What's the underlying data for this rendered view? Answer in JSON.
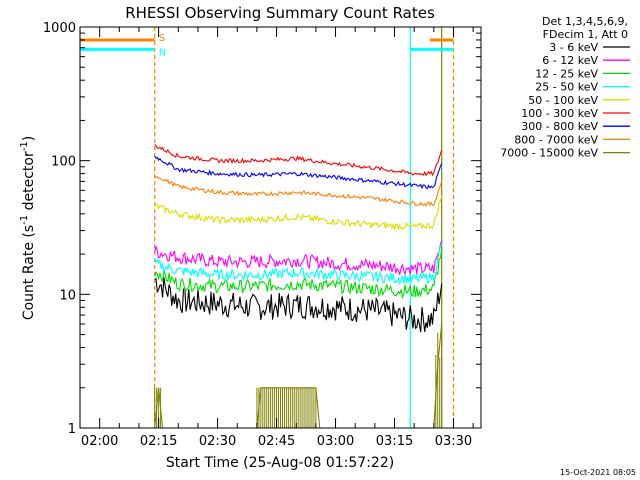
{
  "chart_data": {
    "type": "line",
    "title": "RHESSI Observing Summary Count Rates",
    "xlabel": "Start Time (25-Aug-08 01:57:22)",
    "ylabel_main": "Count Rate (s",
    "ylabel_sup1": "-1",
    "ylabel_mid": " detector",
    "ylabel_sup2": "-1",
    "ylabel_end": ")",
    "y_scale": "log",
    "ylim": [
      1,
      1000
    ],
    "xlim": [
      "01:55",
      "03:37"
    ],
    "x_ticks": [
      "02:00",
      "02:15",
      "02:30",
      "02:45",
      "03:00",
      "03:15",
      "03:30"
    ],
    "x_tick_minutes": [
      120,
      135,
      150,
      165,
      180,
      195,
      210
    ],
    "y_ticks": [
      "1",
      "10",
      "100",
      "1000"
    ],
    "y_tick_values": [
      1,
      10,
      100,
      1000
    ],
    "legend_position": "top-right",
    "legend_header": [
      "Det 1,3,4,5,6,9,",
      "FDecim 1, Att 0"
    ],
    "series": [
      {
        "name": "3 - 6 keV",
        "color": "#000000",
        "x": [
          134,
          140,
          150,
          160,
          170,
          180,
          190,
          200,
          205,
          207
        ],
        "values": [
          13,
          9,
          8.5,
          8,
          8.3,
          8,
          7.5,
          6.5,
          6.5,
          12
        ]
      },
      {
        "name": "6 - 12 keV",
        "color": "#ff00ff",
        "x": [
          134,
          140,
          150,
          160,
          170,
          180,
          190,
          200,
          205,
          207
        ],
        "values": [
          21,
          19,
          17.5,
          17.5,
          18,
          17,
          16.5,
          15.5,
          15.5,
          25
        ]
      },
      {
        "name": "12 - 25 keV",
        "color": "#00dd00",
        "x": [
          134,
          140,
          150,
          160,
          170,
          180,
          190,
          200,
          205,
          207
        ],
        "values": [
          15,
          12,
          11.5,
          11.5,
          12,
          11.5,
          11,
          10.5,
          11,
          22
        ]
      },
      {
        "name": "25 - 50 keV",
        "color": "#00ffff",
        "x": [
          134,
          140,
          150,
          160,
          170,
          180,
          190,
          200,
          205,
          207
        ],
        "values": [
          17,
          15,
          14,
          14,
          14.5,
          14,
          13.5,
          13,
          13.5,
          24
        ]
      },
      {
        "name": "50 - 100 keV",
        "color": "#dddd00",
        "x": [
          134,
          140,
          150,
          160,
          170,
          180,
          190,
          200,
          205,
          207
        ],
        "values": [
          46,
          40,
          36,
          36,
          38,
          35,
          33,
          32,
          33,
          55
        ]
      },
      {
        "name": "100 - 300 keV",
        "color": "#ff0000",
        "x": [
          134,
          140,
          150,
          160,
          170,
          180,
          190,
          200,
          205,
          207
        ],
        "values": [
          130,
          108,
          100,
          100,
          104,
          95,
          88,
          80,
          80,
          120
        ]
      },
      {
        "name": "300 - 800 keV",
        "color": "#0000ff",
        "x": [
          134,
          140,
          150,
          160,
          170,
          180,
          190,
          200,
          205,
          207
        ],
        "values": [
          108,
          86,
          80,
          78,
          80,
          75,
          70,
          65,
          63,
          95
        ]
      },
      {
        "name": "800 - 7000 keV",
        "color": "#ff8000",
        "x": [
          134,
          140,
          150,
          160,
          170,
          180,
          190,
          200,
          205,
          207
        ],
        "values": [
          78,
          64,
          58,
          56,
          58,
          55,
          52,
          48,
          47,
          70
        ]
      },
      {
        "name": "7000 - 15000 keV",
        "color": "#808000",
        "x": [
          134,
          135,
          136,
          160,
          161,
          175,
          176,
          205,
          206,
          207
        ],
        "values": [
          1,
          2,
          1,
          1,
          2,
          2,
          1,
          1,
          3,
          6
        ]
      }
    ],
    "flags": [
      {
        "label": "S",
        "color": "#ff8000",
        "value": 800,
        "segments": [
          [
            115,
            134
          ],
          [
            204,
            210
          ]
        ]
      },
      {
        "label": "N",
        "color": "#00ffff",
        "value": 680,
        "segments": [
          [
            115,
            134
          ],
          [
            199,
            210
          ]
        ]
      }
    ],
    "vertical_markers": [
      {
        "x": 115,
        "color": "#00ffff",
        "style": "solid"
      },
      {
        "x": 134,
        "color": "#ff8000",
        "style": "dashed"
      },
      {
        "x": 199,
        "color": "#00ffff",
        "style": "solid"
      },
      {
        "x": 207,
        "color": "#808000",
        "style": "solid"
      },
      {
        "x": 210,
        "color": "#ff8000",
        "style": "dashed"
      }
    ],
    "timestamp": "15-Oct-2021 08:05"
  }
}
